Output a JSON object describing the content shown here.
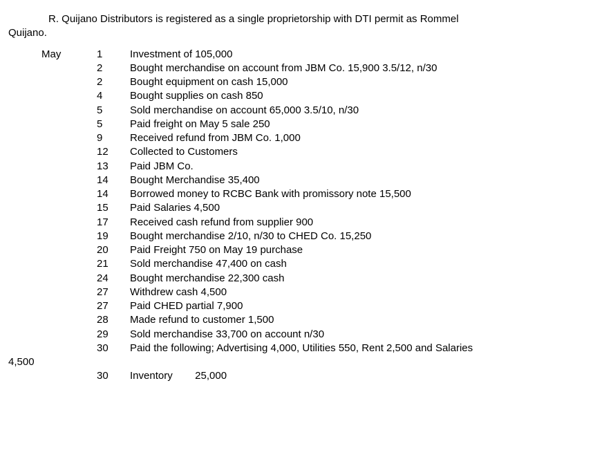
{
  "intro": {
    "line1": "R. Quijano Distributors is registered as a single proprietorship with DTI permit as Rommel",
    "line2": "Quijano."
  },
  "month_label": "May",
  "entries": [
    {
      "day": "1",
      "desc": "Investment of 105,000"
    },
    {
      "day": "2",
      "desc": "Bought merchandise on account from JBM Co. 15,900 3.5/12, n/30"
    },
    {
      "day": "2",
      "desc": "Bought equipment on cash 15,000"
    },
    {
      "day": "4",
      "desc": "Bought supplies on cash 850"
    },
    {
      "day": "5",
      "desc": "Sold merchandise on account 65,000 3.5/10, n/30"
    },
    {
      "day": "5",
      "desc": "Paid freight on May 5 sale 250"
    },
    {
      "day": "9",
      "desc": "Received refund from JBM Co. 1,000"
    },
    {
      "day": "12",
      "desc": "Collected to Customers"
    },
    {
      "day": "13",
      "desc": "Paid JBM Co."
    },
    {
      "day": "14",
      "desc": "Bought Merchandise 35,400"
    },
    {
      "day": "14",
      "desc": "Borrowed money to RCBC Bank with promissory note 15,500"
    },
    {
      "day": "15",
      "desc": "Paid Salaries 4,500"
    },
    {
      "day": "17",
      "desc": "Received cash refund from supplier 900"
    },
    {
      "day": "19",
      "desc": "Bought merchandise 2/10, n/30 to CHED Co. 15,250"
    },
    {
      "day": "20",
      "desc": "Paid Freight 750 on May 19 purchase"
    },
    {
      "day": "21",
      "desc": "Sold merchandise 47,400 on cash"
    },
    {
      "day": "24",
      "desc": "Bought merchandise 22,300 cash"
    },
    {
      "day": "27",
      "desc": "Withdrew cash 4,500"
    },
    {
      "day": "27",
      "desc": "Paid CHED partial 7,900"
    },
    {
      "day": "28",
      "desc": "Made refund to customer 1,500"
    },
    {
      "day": "29",
      "desc": "Sold merchandise 33,700 on account n/30"
    },
    {
      "day": "30",
      "desc": "Paid the following; Advertising 4,000, Utilities 550, Rent 2,500 and Salaries"
    }
  ],
  "wrap_amount": "4,500",
  "inventory": {
    "day": "30",
    "label": "Inventory",
    "value": "25,000"
  }
}
